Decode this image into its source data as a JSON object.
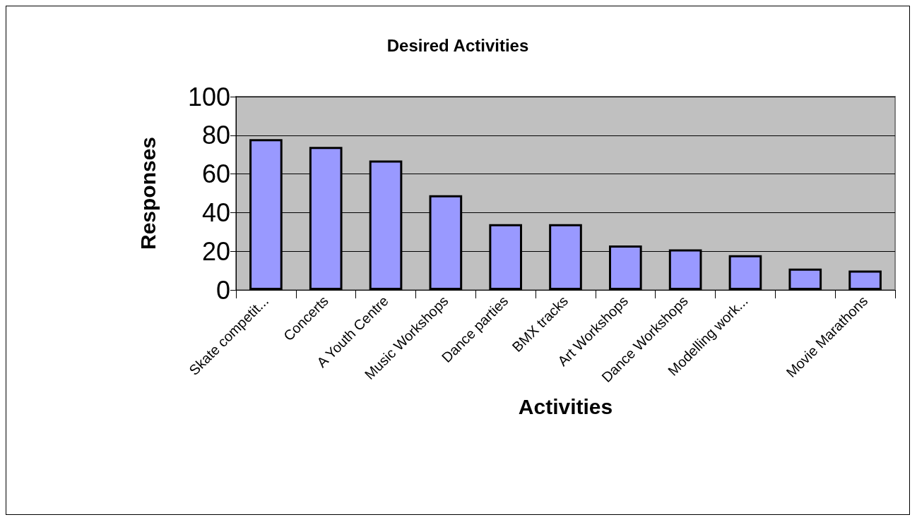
{
  "chart_data": {
    "type": "bar",
    "title": "Desired Activities",
    "xlabel": "Activities",
    "ylabel": "Responses",
    "categories": [
      "Skate competit...",
      "Concerts",
      "A Youth Centre",
      "Music Workshops",
      "Dance parties",
      "BMX tracks",
      "Art Workshops",
      "Dance Workshops",
      "Modelling work...",
      null,
      "Movie Marathons"
    ],
    "values": [
      78,
      74,
      67,
      49,
      34,
      34,
      23,
      21,
      18,
      11,
      10
    ],
    "color": "#9999ff",
    "ylim": [
      0,
      100
    ],
    "yticks": [
      0,
      20,
      40,
      60,
      80,
      100
    ],
    "grid": "y"
  }
}
